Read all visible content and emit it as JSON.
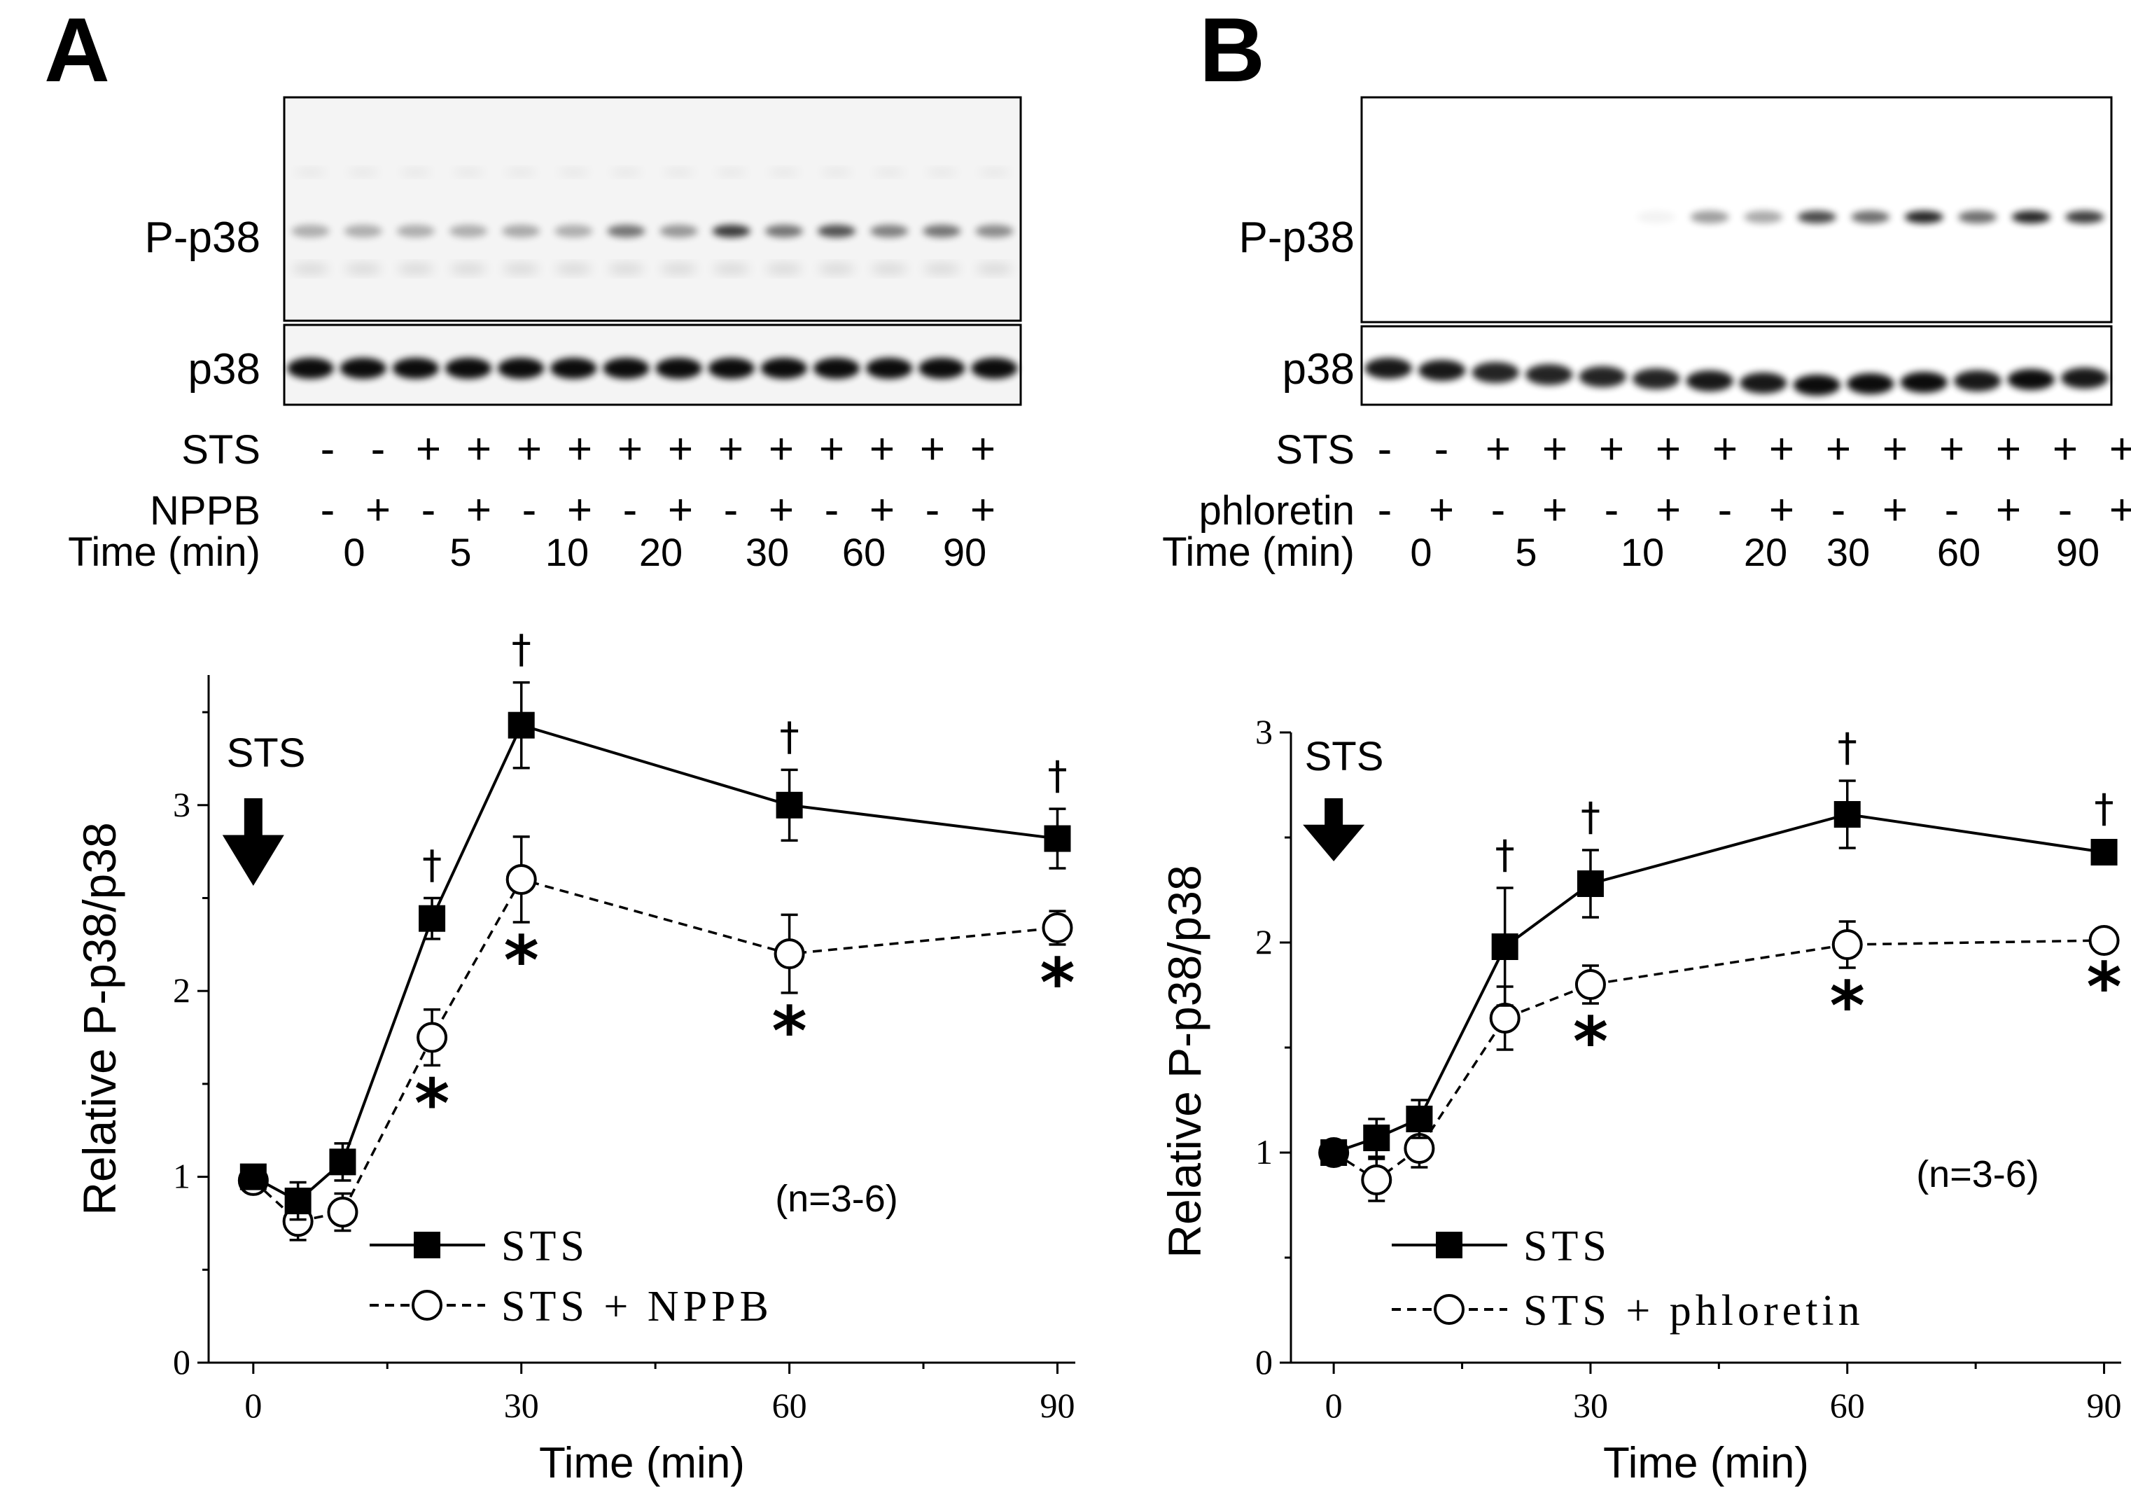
{
  "figure": {
    "panels": [
      {
        "letter": "A",
        "blot": {
          "row_labels": [
            "P-p38",
            "p38"
          ],
          "treatment_rows": [
            {
              "label": "STS",
              "signs": [
                "-",
                "-",
                "+",
                "+",
                "+",
                "+",
                "+",
                "+",
                "+",
                "+",
                "+",
                "+",
                "+",
                "+"
              ]
            },
            {
              "label": "NPPB",
              "signs": [
                "-",
                "+",
                "-",
                "+",
                "-",
                "+",
                "-",
                "+",
                "-",
                "+",
                "-",
                "+",
                "-",
                "+"
              ]
            }
          ],
          "time_label": "Time (min)",
          "time_values": [
            "0",
            "5",
            "10",
            "20",
            "30",
            "60",
            "90"
          ],
          "band_intensity_pp38": [
            0.3,
            0.3,
            0.3,
            0.3,
            0.32,
            0.3,
            0.55,
            0.4,
            0.8,
            0.55,
            0.7,
            0.5,
            0.55,
            0.45
          ],
          "band_intensity_p38": [
            1,
            1,
            1,
            1,
            1,
            1,
            1,
            1,
            1,
            1,
            1,
            1,
            1,
            1
          ]
        }
      },
      {
        "letter": "B",
        "blot": {
          "row_labels": [
            "P-p38",
            "p38"
          ],
          "treatment_rows": [
            {
              "label": "STS",
              "signs": [
                "-",
                "-",
                "+",
                "+",
                "+",
                "+",
                "+",
                "+",
                "+",
                "+",
                "+",
                "+",
                "+",
                "+"
              ]
            },
            {
              "label": "phloretin",
              "signs": [
                "-",
                "+",
                "-",
                "+",
                "-",
                "+",
                "-",
                "+",
                "-",
                "+",
                "-",
                "+",
                "-",
                "+"
              ]
            }
          ],
          "time_label": "Time (min)",
          "time_values": [
            "0",
            "5",
            "10",
            "20",
            "30",
            "60",
            "90"
          ],
          "band_intensity_pp38": [
            0,
            0,
            0,
            0,
            0,
            0.05,
            0.4,
            0.35,
            0.75,
            0.6,
            0.9,
            0.6,
            0.9,
            0.8
          ],
          "band_intensity_p38": [
            0.95,
            0.95,
            0.9,
            0.9,
            0.9,
            0.9,
            0.95,
            0.95,
            1,
            1,
            1,
            0.95,
            1,
            0.95
          ]
        }
      }
    ]
  },
  "chart_data": [
    {
      "type": "line",
      "panel": "A",
      "xlabel": "Time (min)",
      "ylabel": "Relative P-p38/p38",
      "xlim": [
        -5,
        92
      ],
      "ylim": [
        0,
        3.7
      ],
      "xticks": [
        0,
        30,
        60,
        90
      ],
      "yticks": [
        0,
        1,
        2,
        3
      ],
      "stimulus_label": "STS",
      "stimulus_time": 0,
      "n_label": "(n=3-6)",
      "series": [
        {
          "name": "STS",
          "marker": "filled-square",
          "line": "solid",
          "x": [
            0,
            5,
            10,
            20,
            30,
            60,
            90
          ],
          "y": [
            1.0,
            0.87,
            1.08,
            2.39,
            3.43,
            3.0,
            2.82
          ],
          "err": [
            0.04,
            0.1,
            0.1,
            0.11,
            0.23,
            0.19,
            0.16
          ],
          "dagger_at": [
            20,
            30,
            60,
            90
          ]
        },
        {
          "name": "STS + NPPB",
          "marker": "open-circle",
          "line": "dashed",
          "x": [
            0,
            5,
            10,
            20,
            30,
            60,
            90
          ],
          "y": [
            0.98,
            0.76,
            0.81,
            1.75,
            2.6,
            2.2,
            2.34
          ],
          "err": [
            0.04,
            0.1,
            0.1,
            0.15,
            0.23,
            0.21,
            0.09
          ],
          "star_at": [
            20,
            30,
            60,
            90
          ]
        }
      ],
      "significance_dagger": "†",
      "significance_star": "*"
    },
    {
      "type": "line",
      "panel": "B",
      "xlabel": "Time (min)",
      "ylabel": "Relative P-p38/p38",
      "xlim": [
        -5,
        92
      ],
      "ylim": [
        0,
        3.0
      ],
      "xticks": [
        0,
        30,
        60,
        90
      ],
      "yticks": [
        0,
        1,
        2,
        3
      ],
      "stimulus_label": "STS",
      "stimulus_time": 0,
      "n_label": "(n=3-6)",
      "series": [
        {
          "name": "STS",
          "marker": "filled-square",
          "line": "solid",
          "x": [
            0,
            5,
            10,
            20,
            30,
            60,
            90
          ],
          "y": [
            1.0,
            1.07,
            1.16,
            1.98,
            2.28,
            2.61,
            2.43
          ],
          "err": [
            0.04,
            0.09,
            0.09,
            0.28,
            0.16,
            0.16,
            0.05
          ],
          "dagger_at": [
            20,
            30,
            60,
            90
          ]
        },
        {
          "name": "STS + phloretin",
          "marker": "open-circle",
          "line": "dashed",
          "x": [
            0,
            5,
            10,
            20,
            30,
            60,
            90
          ],
          "y": [
            1.0,
            0.87,
            1.02,
            1.64,
            1.8,
            1.99,
            2.01
          ],
          "err": [
            0.04,
            0.1,
            0.09,
            0.15,
            0.09,
            0.11,
            0.04
          ],
          "star_at": [
            30,
            60,
            90
          ]
        }
      ],
      "significance_dagger": "†",
      "significance_star": "*"
    }
  ]
}
